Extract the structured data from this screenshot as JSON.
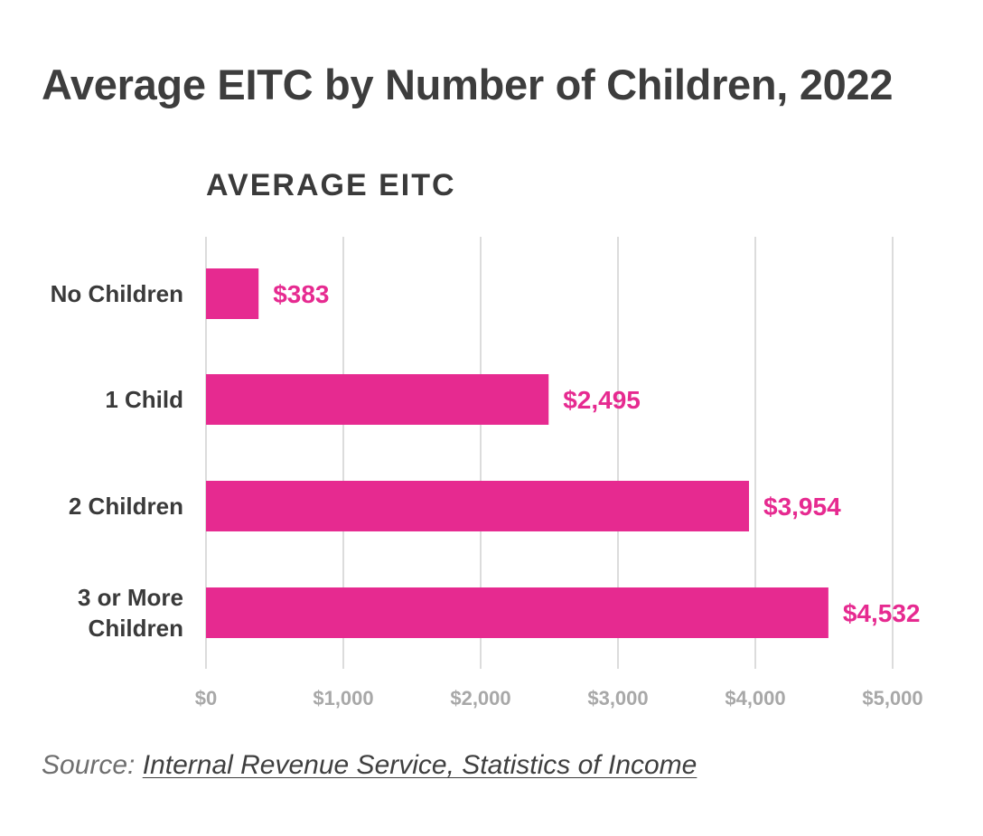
{
  "title": "Average EITC by Number of Children, 2022",
  "source": {
    "prefix": "Source:",
    "link_text": "Internal Revenue Service, Statistics of Income"
  },
  "colors": {
    "bar": "#e62a90",
    "label": "#e62a90",
    "grid": "#dcdcdc",
    "tick": "#a8a8a8",
    "category": "#3a3a3a"
  },
  "chart_data": {
    "type": "bar",
    "orientation": "horizontal",
    "title": "AVERAGE EITC",
    "categories": [
      "No Children",
      "1 Child",
      "2 Children",
      "3 or More Children"
    ],
    "category_lines": [
      [
        "No Children"
      ],
      [
        "1 Child"
      ],
      [
        "2 Children"
      ],
      [
        "3 or More",
        "Children"
      ]
    ],
    "values": [
      383,
      2495,
      3954,
      4532
    ],
    "value_labels": [
      "$383",
      "$2,495",
      "$3,954",
      "$4,532"
    ],
    "xlim": [
      0,
      5000
    ],
    "xticks": [
      0,
      1000,
      2000,
      3000,
      4000,
      5000
    ],
    "xtick_labels": [
      "$0",
      "$1,000",
      "$2,000",
      "$3,000",
      "$4,000",
      "$5,000"
    ],
    "grid": true,
    "legend": false
  }
}
